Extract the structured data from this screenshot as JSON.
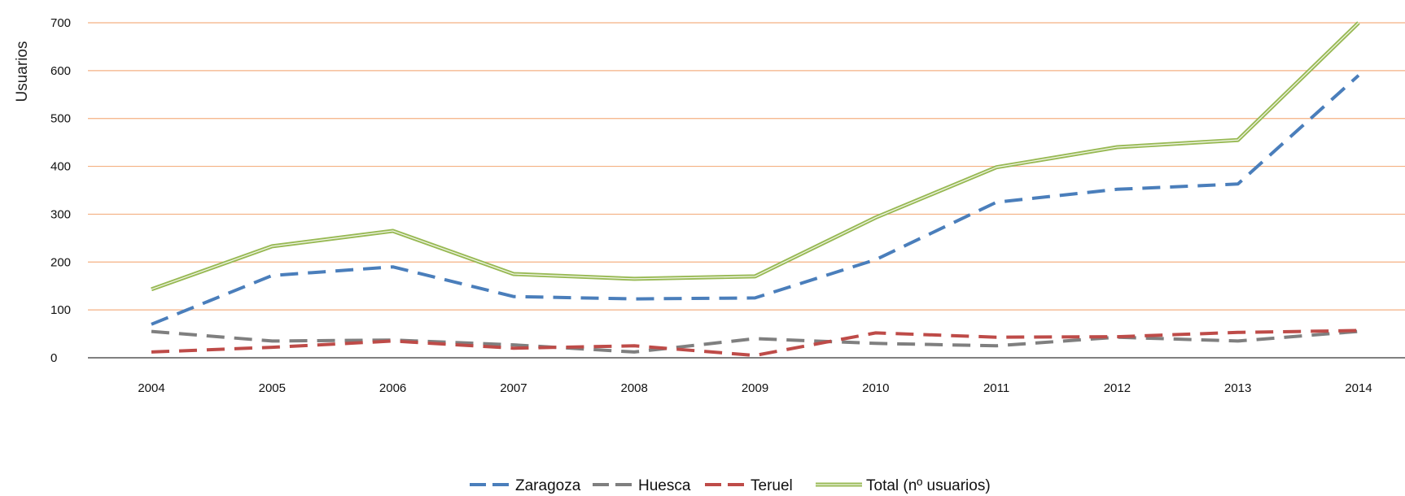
{
  "chart_data": {
    "type": "line",
    "title": "",
    "xlabel": "",
    "ylabel": "Usuarios",
    "categories": [
      "2004",
      "2005",
      "2006",
      "2007",
      "2008",
      "2009",
      "2010",
      "2011",
      "2012",
      "2013",
      "2014"
    ],
    "ylim": [
      0,
      700
    ],
    "yticks": [
      "0",
      "100",
      "200",
      "300",
      "400",
      "500",
      "600",
      "700"
    ],
    "grid": true,
    "legend_position": "bottom",
    "series": [
      {
        "name": "Zaragoza",
        "style": "dashed",
        "color": "#4a7ebb",
        "values": [
          70,
          172,
          190,
          128,
          123,
          125,
          205,
          325,
          352,
          363,
          590
        ]
      },
      {
        "name": "Huesca",
        "style": "dashed",
        "color": "#7f7f7f",
        "values": [
          55,
          35,
          37,
          27,
          12,
          40,
          30,
          25,
          43,
          35,
          55
        ]
      },
      {
        "name": "Teruel",
        "style": "dashed",
        "color": "#be4b48",
        "values": [
          12,
          22,
          35,
          20,
          25,
          5,
          52,
          43,
          44,
          53,
          57
        ]
      },
      {
        "name": "Total (nº usuarios)",
        "style": "double",
        "color": "#98b954",
        "values": [
          143,
          233,
          265,
          175,
          165,
          170,
          293,
          398,
          440,
          455,
          700
        ]
      }
    ],
    "colors": {
      "gridline": "#f4b183",
      "axis": "#808080"
    }
  }
}
